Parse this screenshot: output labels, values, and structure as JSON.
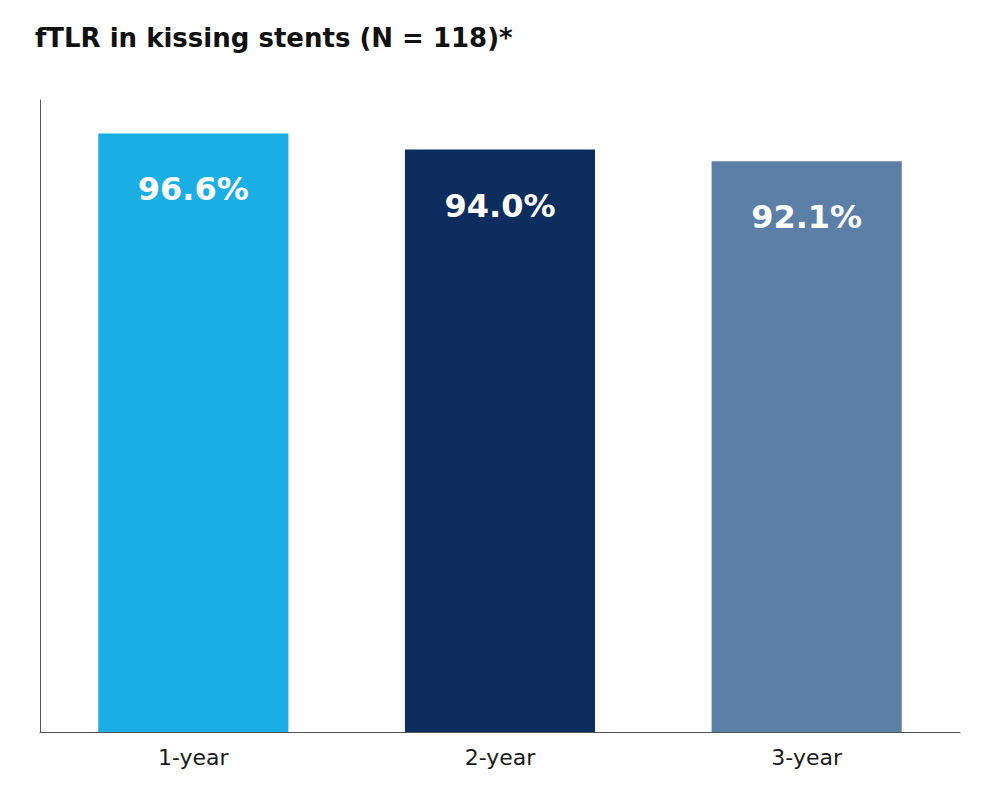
{
  "chart_data": {
    "type": "bar",
    "title": "fTLR in kissing stents (N = 118)*",
    "categories": [
      "1-year",
      "2-year",
      "3-year"
    ],
    "values": [
      96.6,
      94.0,
      92.1
    ],
    "value_labels": [
      "96.6%",
      "94.0%",
      "92.1%"
    ],
    "colors": [
      "#1aaee5",
      "#0d2d5e",
      "#5b7fa6"
    ],
    "ylim": [
      0,
      102
    ],
    "grid": false,
    "data_labels": true,
    "tick_labels": "x"
  }
}
